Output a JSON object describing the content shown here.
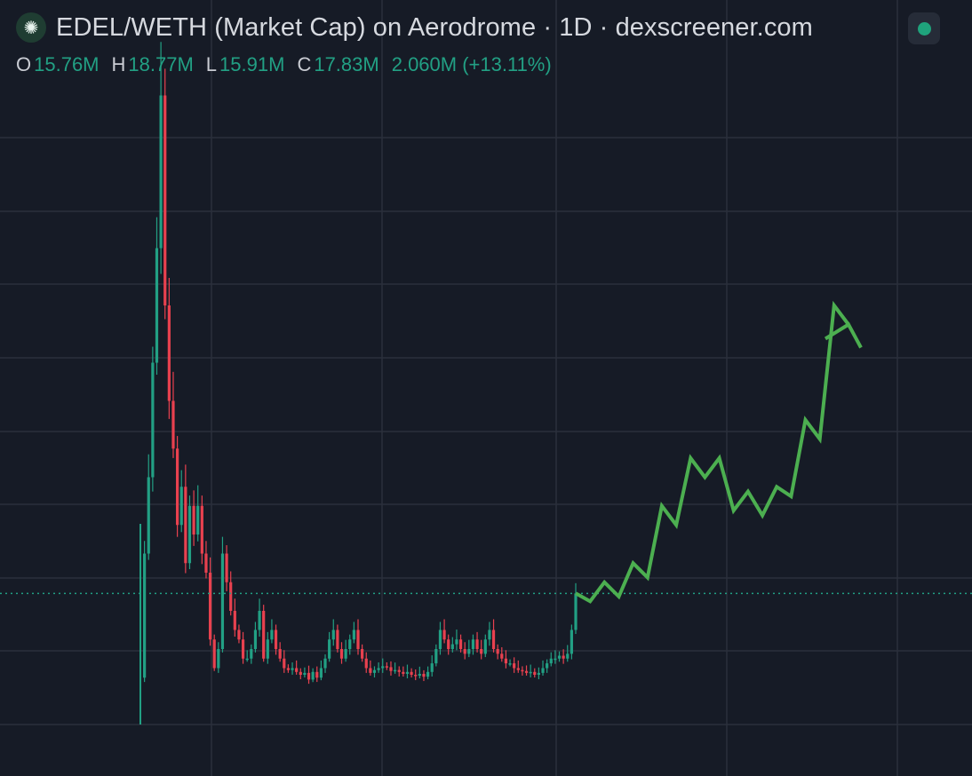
{
  "header": {
    "title": "EDEL/WETH (Market Cap) on Aerodrome · 1D · dexscreener.com",
    "status_color": "#1fa37c"
  },
  "ohlc": {
    "o_label": "O",
    "o_value": "15.76M",
    "h_label": "H",
    "h_value": "18.77M",
    "l_label": "L",
    "l_value": "15.91M",
    "c_label": "C",
    "c_value": "17.83M",
    "change": "2.060M (+13.11%)"
  },
  "colors": {
    "background": "#161b26",
    "grid": "#2a303c",
    "up": "#22a084",
    "down": "#e8414f",
    "projection": "#4caf50",
    "last_price_line": "#22a084",
    "text": "#d6d9df"
  },
  "chart_data": {
    "type": "candlestick",
    "title": "EDEL/WETH (Market Cap) on Aerodrome · 1D · dexscreener.com",
    "last_close": 17.83,
    "ylim": [
      0,
      72
    ],
    "grid": true,
    "price_series": [
      9,
      22,
      30,
      42,
      54,
      70,
      48,
      38,
      33,
      25,
      29,
      21,
      27,
      24,
      27,
      22,
      20,
      13,
      10,
      12,
      22,
      19,
      16,
      14,
      13,
      11,
      11,
      12,
      14,
      16,
      11,
      13,
      14,
      12,
      11,
      10,
      9.8,
      10,
      9.6,
      9.3,
      9.5,
      8.8,
      9.6,
      9,
      10,
      11,
      13,
      14,
      12,
      11,
      12,
      13,
      14,
      12,
      11,
      10,
      9.5,
      9.8,
      10,
      10.2,
      10.1,
      9.7,
      9.8,
      9.6,
      9.4,
      9.6,
      9.3,
      9.2,
      9.4,
      9.1,
      9.6,
      10.5,
      12,
      14,
      13,
      12,
      12.5,
      13,
      12,
      11.5,
      12,
      13,
      12,
      11.5,
      13,
      14,
      12,
      11.5,
      11,
      10.5,
      10.5,
      10,
      9.8,
      9.7,
      9.5,
      9.6,
      9.3,
      9.5,
      10,
      10.5,
      11,
      11,
      11.3,
      11,
      11.5,
      14,
      17.83
    ],
    "projection": [
      17.83,
      17,
      19,
      17.5,
      21,
      19.5,
      27,
      25,
      32,
      30,
      32,
      26.5,
      28.5,
      26,
      29,
      28,
      36,
      34,
      48,
      46
    ]
  }
}
